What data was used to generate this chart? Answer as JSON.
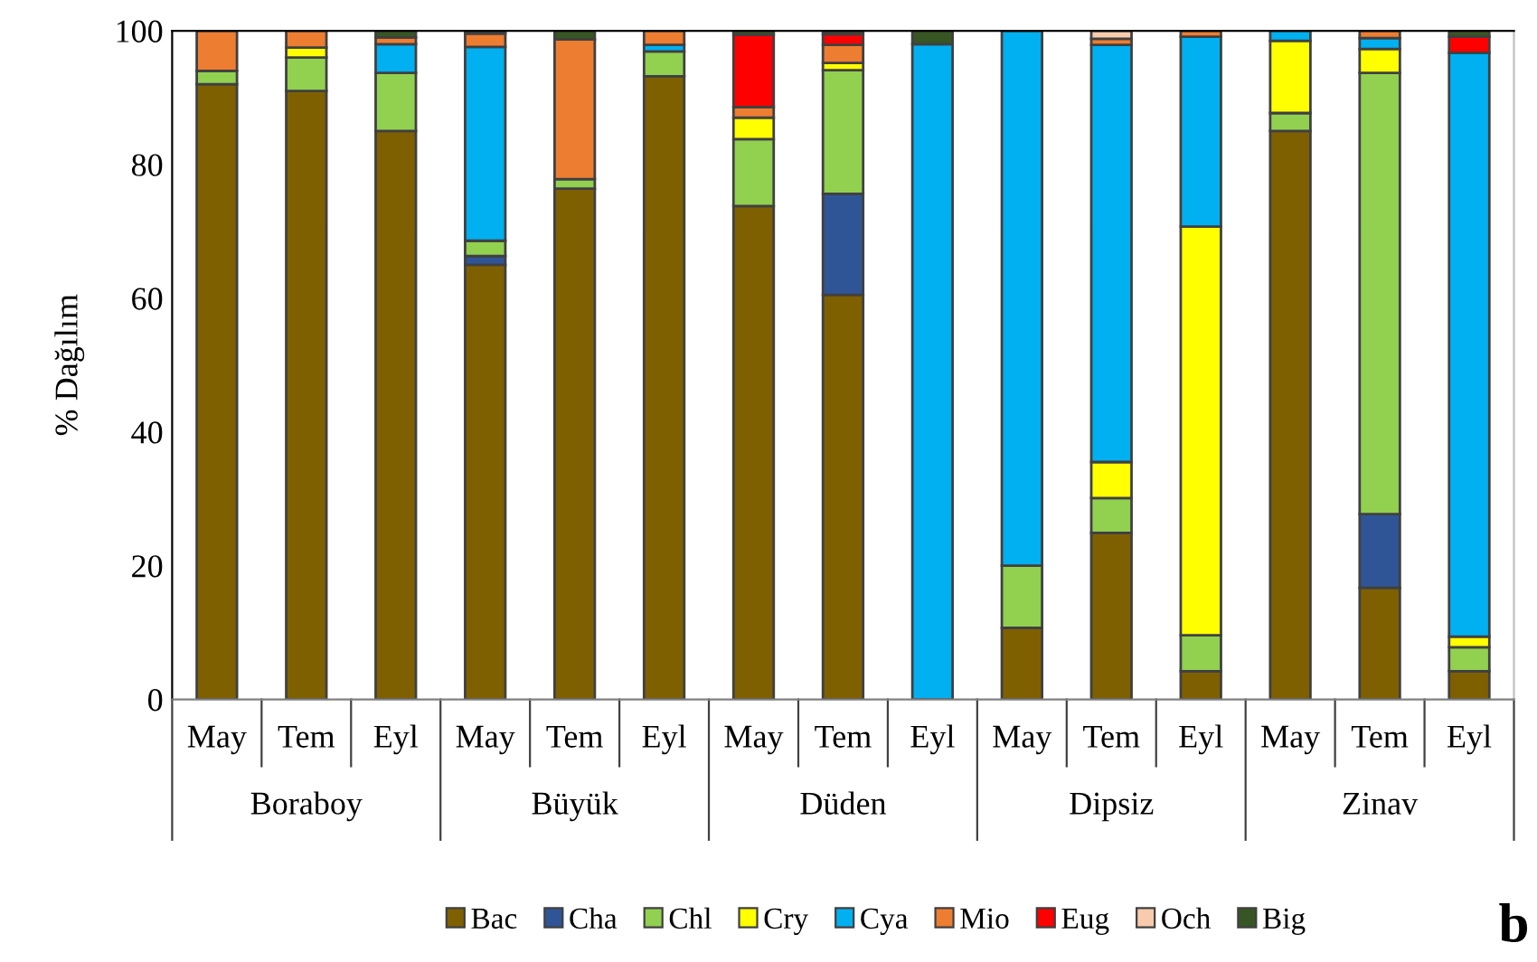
{
  "chart_data": {
    "type": "bar",
    "stacked": true,
    "ylabel": "% Dağılım",
    "categories": [
      "May",
      "Tem",
      "Eyl",
      "May",
      "Tem",
      "Eyl",
      "May",
      "Tem",
      "Eyl",
      "May",
      "Tem",
      "Eyl",
      "May",
      "Tem",
      "Eyl"
    ],
    "annotations": [
      "Boraboy",
      "Büyük",
      "Düden",
      "Dipsiz",
      "Zinav",
      "b"
    ],
    "ylim": [
      0,
      100
    ],
    "yticks": [
      0,
      20,
      40,
      60,
      80,
      100
    ],
    "grid": false,
    "legend": "bottom",
    "series": [
      {
        "name": "Bac",
        "color": "#7f6000",
        "values": [
          92,
          91,
          85,
          65,
          76.4,
          93.2,
          73.8,
          60.5,
          null,
          10.7,
          24.9,
          4.2,
          85,
          16.7,
          4.2
        ]
      },
      {
        "name": "Cha",
        "color": "#2f5597",
        "values": [
          null,
          null,
          null,
          1.3,
          null,
          null,
          null,
          15.1,
          null,
          null,
          null,
          null,
          null,
          11,
          null
        ]
      },
      {
        "name": "Chl",
        "color": "#92d050",
        "values": [
          2,
          5,
          8.7,
          2.3,
          1.4,
          3.7,
          10,
          18.5,
          null,
          9.3,
          5.2,
          5.4,
          2.7,
          66,
          3.6
        ]
      },
      {
        "name": "Cry",
        "color": "#ffff00",
        "values": [
          null,
          1.5,
          null,
          null,
          null,
          null,
          3.2,
          1.1,
          null,
          null,
          5.4,
          61.1,
          10.8,
          3.6,
          1.6
        ]
      },
      {
        "name": "Cya",
        "color": "#00b0f0",
        "values": [
          null,
          null,
          4.3,
          29,
          null,
          1,
          null,
          null,
          98,
          80,
          62.4,
          28.4,
          1.5,
          1.6,
          87.3
        ]
      },
      {
        "name": "Mio",
        "color": "#ed7d31",
        "values": [
          6,
          2.5,
          1,
          2,
          20.9,
          2.1,
          1.6,
          2.7,
          null,
          null,
          0.9,
          0.9,
          null,
          1.1,
          null
        ]
      },
      {
        "name": "Eug",
        "color": "#ff0000",
        "values": [
          null,
          null,
          null,
          null,
          null,
          null,
          10.8,
          1.6,
          null,
          null,
          null,
          null,
          null,
          null,
          2.4
        ]
      },
      {
        "name": "Och",
        "color": "#f8cbad",
        "values": [
          null,
          null,
          null,
          null,
          null,
          null,
          null,
          null,
          null,
          null,
          1.2,
          null,
          null,
          null,
          null
        ]
      },
      {
        "name": "Big",
        "color": "#375623",
        "values": [
          null,
          null,
          1,
          0.4,
          1.3,
          null,
          0.6,
          0.5,
          2,
          null,
          null,
          null,
          null,
          null,
          0.9
        ]
      }
    ]
  }
}
